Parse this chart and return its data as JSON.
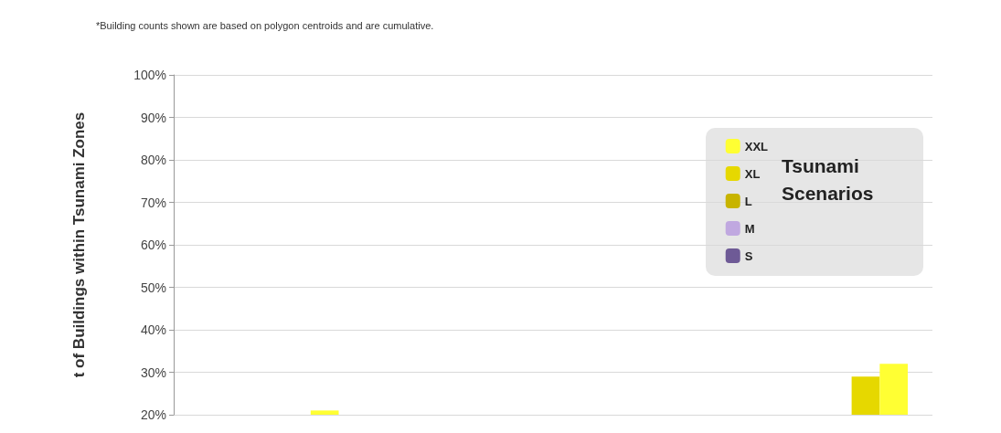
{
  "chart_data": {
    "type": "bar",
    "ylabel": "t of Buildings within Tsunami Zones",
    "legend_title": "Tsunami Scenarios",
    "annotations": [
      "*Building counts shown are based on polygon centroids and are cumulative."
    ],
    "categories": [
      null,
      null,
      null,
      null
    ],
    "series": [
      {
        "name": "S",
        "color": "#6e5a96",
        "values": [
          null,
          null,
          null,
          null
        ]
      },
      {
        "name": "M",
        "color": "#c0a8e0",
        "values": [
          null,
          null,
          null,
          null
        ]
      },
      {
        "name": "L",
        "color": "#c8b400",
        "values": [
          null,
          null,
          null,
          null
        ]
      },
      {
        "name": "XL",
        "color": "#e6d800",
        "values": [
          null,
          null,
          null,
          29
        ]
      },
      {
        "name": "XXL",
        "color": "#ffff33",
        "values": [
          21,
          null,
          null,
          32
        ]
      }
    ],
    "ylim": [
      20,
      100
    ],
    "yticks": [
      {
        "value": 20,
        "label": "20%"
      },
      {
        "value": 30,
        "label": "30%"
      },
      {
        "value": 40,
        "label": "40%"
      },
      {
        "value": 50,
        "label": "50%"
      },
      {
        "value": 60,
        "label": "60%"
      },
      {
        "value": 70,
        "label": "70%"
      },
      {
        "value": 80,
        "label": "80%"
      },
      {
        "value": 90,
        "label": "90%"
      },
      {
        "value": 100,
        "label": "100%"
      }
    ],
    "grid": "y",
    "legend": "top right"
  }
}
